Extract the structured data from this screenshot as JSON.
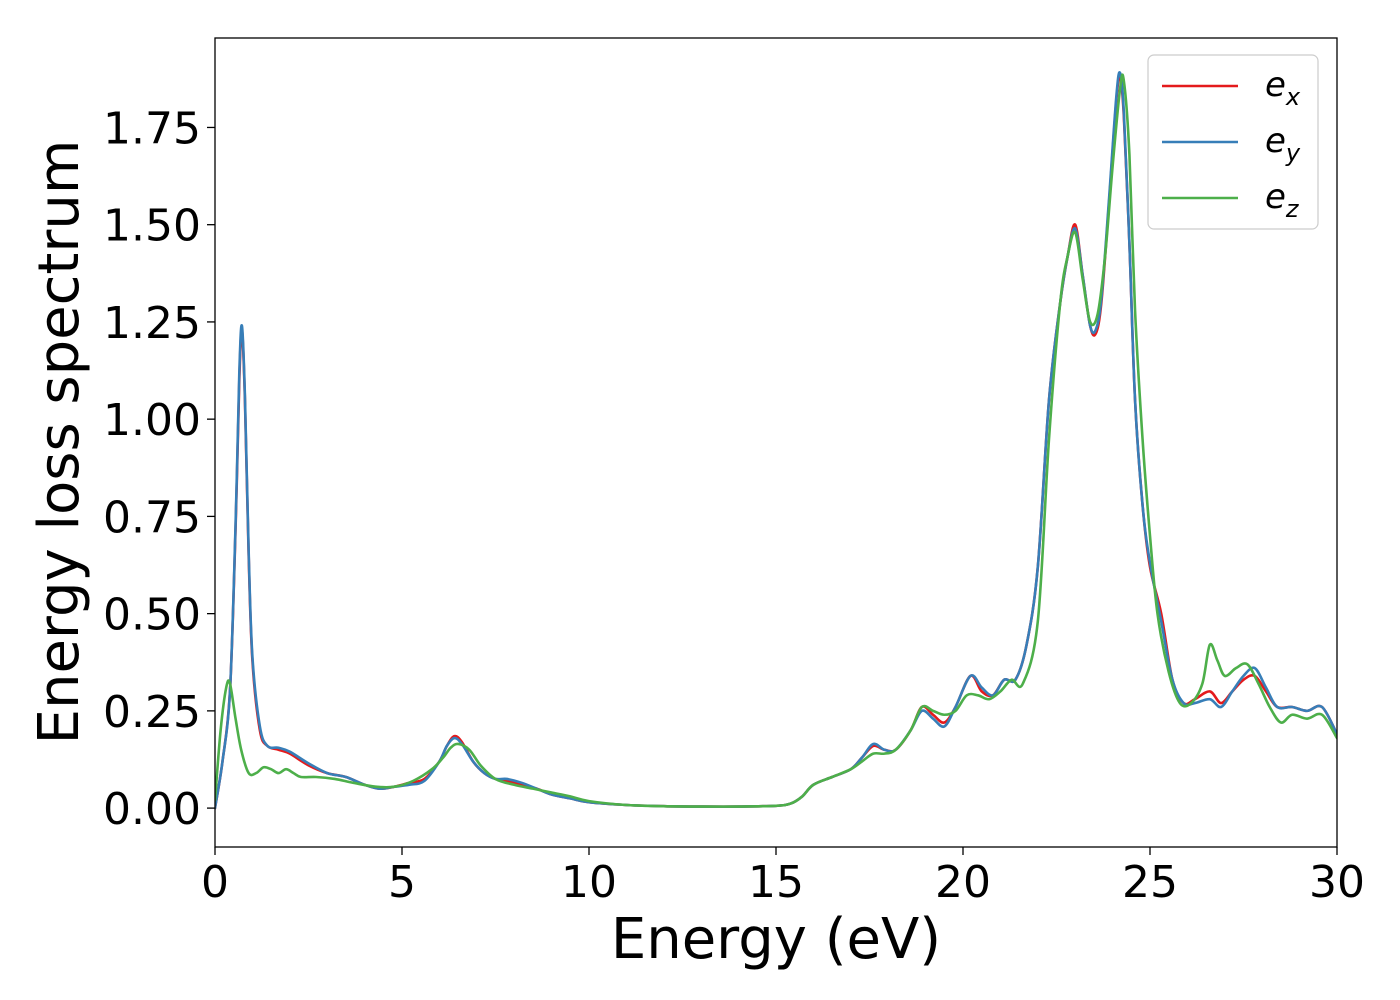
{
  "chart_data": {
    "type": "line",
    "title": "",
    "xlabel": "Energy (eV)",
    "ylabel": "Energy loss spectrum",
    "xlim": [
      0,
      30
    ],
    "ylim": [
      -0.1,
      1.98
    ],
    "xticks": [
      0,
      5,
      10,
      15,
      20,
      25,
      30
    ],
    "xtick_labels": [
      "0",
      "5",
      "10",
      "15",
      "20",
      "25",
      "30"
    ],
    "yticks": [
      0,
      0.25,
      0.5,
      0.75,
      1.0,
      1.25,
      1.5,
      1.75
    ],
    "ytick_labels": [
      "0.00",
      "0.25",
      "0.50",
      "0.75",
      "1.00",
      "1.25",
      "1.50",
      "1.75"
    ],
    "grid": false,
    "legend_position": "top-right",
    "series": [
      {
        "name": "e_x",
        "label_base": "e",
        "label_sub": "x",
        "color": "#e41a1c",
        "x": [
          0,
          0.2,
          0.4,
          0.55,
          0.65,
          0.72,
          0.8,
          0.9,
          1.0,
          1.2,
          1.4,
          1.7,
          2.0,
          2.5,
          3.0,
          3.5,
          4.0,
          4.4,
          4.8,
          5.2,
          5.6,
          6.0,
          6.2,
          6.4,
          6.6,
          6.9,
          7.2,
          7.5,
          7.8,
          8.2,
          8.6,
          9.0,
          9.5,
          10,
          11,
          12,
          13,
          14,
          15,
          15.4,
          15.7,
          16.0,
          16.5,
          17.0,
          17.3,
          17.6,
          17.9,
          18.2,
          18.6,
          18.9,
          19.2,
          19.5,
          19.8,
          20.2,
          20.5,
          20.8,
          21.1,
          21.4,
          21.7,
          22.0,
          22.3,
          22.6,
          22.8,
          23.0,
          23.2,
          23.4,
          23.55,
          23.7,
          23.9,
          24.1,
          24.2,
          24.3,
          24.45,
          24.6,
          24.8,
          25.0,
          25.3,
          25.6,
          25.9,
          26.2,
          26.6,
          26.9,
          27.2,
          27.5,
          27.8,
          28.1,
          28.4,
          28.8,
          29.2,
          29.6,
          30.0
        ],
        "y": [
          0.0,
          0.12,
          0.3,
          0.72,
          1.1,
          1.23,
          1.05,
          0.65,
          0.38,
          0.2,
          0.16,
          0.15,
          0.14,
          0.11,
          0.09,
          0.08,
          0.06,
          0.05,
          0.055,
          0.065,
          0.075,
          0.12,
          0.16,
          0.185,
          0.17,
          0.12,
          0.09,
          0.075,
          0.07,
          0.06,
          0.05,
          0.035,
          0.025,
          0.015,
          0.008,
          0.005,
          0.004,
          0.004,
          0.006,
          0.012,
          0.03,
          0.06,
          0.08,
          0.1,
          0.13,
          0.16,
          0.15,
          0.15,
          0.2,
          0.26,
          0.24,
          0.22,
          0.26,
          0.34,
          0.3,
          0.29,
          0.33,
          0.33,
          0.42,
          0.62,
          1.05,
          1.3,
          1.42,
          1.5,
          1.37,
          1.24,
          1.22,
          1.3,
          1.55,
          1.82,
          1.88,
          1.78,
          1.45,
          1.05,
          0.78,
          0.62,
          0.5,
          0.33,
          0.27,
          0.28,
          0.3,
          0.27,
          0.3,
          0.33,
          0.34,
          0.3,
          0.26,
          0.26,
          0.25,
          0.26,
          0.19
        ]
      },
      {
        "name": "e_y",
        "label_base": "e",
        "label_sub": "y",
        "color": "#377eb8",
        "x": [
          0,
          0.2,
          0.4,
          0.55,
          0.65,
          0.72,
          0.8,
          0.9,
          1.0,
          1.2,
          1.4,
          1.7,
          2.0,
          2.5,
          3.0,
          3.5,
          4.0,
          4.4,
          4.8,
          5.2,
          5.6,
          6.0,
          6.2,
          6.4,
          6.6,
          6.9,
          7.2,
          7.5,
          7.8,
          8.2,
          8.6,
          9.0,
          9.5,
          10,
          11,
          12,
          13,
          14,
          15,
          15.4,
          15.7,
          16.0,
          16.5,
          17.0,
          17.3,
          17.6,
          17.9,
          18.2,
          18.6,
          18.9,
          19.2,
          19.5,
          19.8,
          20.2,
          20.5,
          20.8,
          21.1,
          21.4,
          21.7,
          22.0,
          22.3,
          22.6,
          22.8,
          23.0,
          23.2,
          23.4,
          23.55,
          23.7,
          23.9,
          24.1,
          24.2,
          24.3,
          24.45,
          24.6,
          24.8,
          25.0,
          25.3,
          25.6,
          25.9,
          26.2,
          26.6,
          26.9,
          27.2,
          27.5,
          27.8,
          28.1,
          28.4,
          28.8,
          29.2,
          29.6,
          30.0
        ],
        "y": [
          0.0,
          0.12,
          0.3,
          0.73,
          1.12,
          1.24,
          1.06,
          0.66,
          0.39,
          0.21,
          0.16,
          0.155,
          0.145,
          0.115,
          0.09,
          0.08,
          0.06,
          0.05,
          0.055,
          0.06,
          0.07,
          0.12,
          0.16,
          0.18,
          0.165,
          0.12,
          0.09,
          0.075,
          0.075,
          0.065,
          0.05,
          0.035,
          0.025,
          0.015,
          0.008,
          0.005,
          0.004,
          0.004,
          0.006,
          0.012,
          0.03,
          0.06,
          0.08,
          0.1,
          0.13,
          0.165,
          0.15,
          0.15,
          0.2,
          0.25,
          0.23,
          0.21,
          0.26,
          0.34,
          0.31,
          0.29,
          0.33,
          0.33,
          0.42,
          0.62,
          1.05,
          1.3,
          1.42,
          1.49,
          1.37,
          1.24,
          1.23,
          1.31,
          1.56,
          1.83,
          1.89,
          1.79,
          1.45,
          1.05,
          0.78,
          0.63,
          0.48,
          0.33,
          0.27,
          0.27,
          0.28,
          0.26,
          0.3,
          0.34,
          0.36,
          0.31,
          0.26,
          0.26,
          0.25,
          0.26,
          0.19
        ]
      },
      {
        "name": "e_z",
        "label_base": "e",
        "label_sub": "z",
        "color": "#4daf4a",
        "x": [
          0,
          0.15,
          0.3,
          0.4,
          0.55,
          0.7,
          0.9,
          1.1,
          1.3,
          1.5,
          1.7,
          1.9,
          2.1,
          2.3,
          2.7,
          3.2,
          3.7,
          4.3,
          4.8,
          5.3,
          5.8,
          6.1,
          6.3,
          6.5,
          6.8,
          7.1,
          7.5,
          8.0,
          8.5,
          9.0,
          9.5,
          10,
          11,
          12,
          13,
          14,
          15,
          15.4,
          15.7,
          16.0,
          16.5,
          17.0,
          17.3,
          17.6,
          17.9,
          18.2,
          18.6,
          18.9,
          19.2,
          19.5,
          19.8,
          20.1,
          20.4,
          20.7,
          21.0,
          21.3,
          21.6,
          22.0,
          22.3,
          22.6,
          22.8,
          23.0,
          23.2,
          23.4,
          23.6,
          23.8,
          24.0,
          24.2,
          24.3,
          24.45,
          24.6,
          24.8,
          25.0,
          25.2,
          25.5,
          25.8,
          26.1,
          26.4,
          26.6,
          26.8,
          27.0,
          27.3,
          27.6,
          27.9,
          28.2,
          28.5,
          28.8,
          29.2,
          29.6,
          30.0
        ],
        "y": [
          0.02,
          0.2,
          0.31,
          0.32,
          0.23,
          0.15,
          0.09,
          0.09,
          0.105,
          0.1,
          0.09,
          0.1,
          0.09,
          0.08,
          0.08,
          0.075,
          0.065,
          0.055,
          0.055,
          0.07,
          0.1,
          0.13,
          0.155,
          0.165,
          0.15,
          0.11,
          0.075,
          0.06,
          0.05,
          0.04,
          0.03,
          0.018,
          0.008,
          0.005,
          0.004,
          0.004,
          0.006,
          0.012,
          0.03,
          0.06,
          0.08,
          0.1,
          0.12,
          0.14,
          0.14,
          0.15,
          0.2,
          0.26,
          0.25,
          0.24,
          0.25,
          0.29,
          0.29,
          0.28,
          0.3,
          0.33,
          0.32,
          0.48,
          0.95,
          1.3,
          1.42,
          1.48,
          1.36,
          1.25,
          1.27,
          1.42,
          1.65,
          1.85,
          1.87,
          1.68,
          1.28,
          0.95,
          0.7,
          0.5,
          0.35,
          0.27,
          0.27,
          0.32,
          0.42,
          0.38,
          0.34,
          0.36,
          0.37,
          0.32,
          0.26,
          0.22,
          0.24,
          0.23,
          0.24,
          0.18
        ]
      }
    ]
  }
}
